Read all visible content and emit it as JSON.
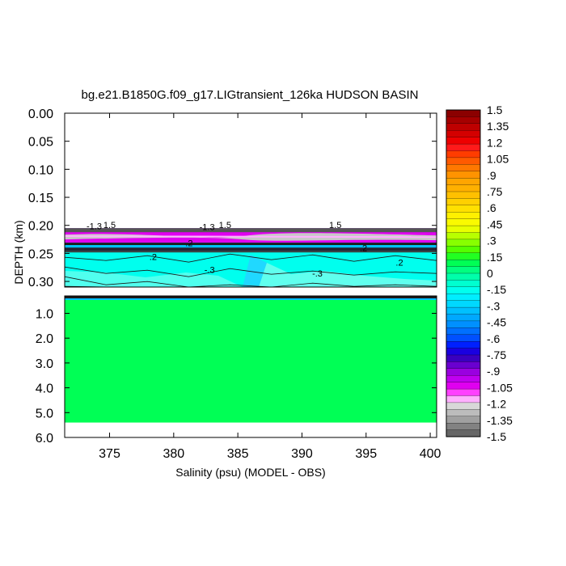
{
  "chart_data": {
    "type": "heatmap",
    "title": "bg.e21.B1850G.f09_g17.LIGtransient_126ka HUDSON BASIN",
    "xlabel": "Salinity (psu) (MODEL - OBS)",
    "ylabel": "DEPTH (km)",
    "xlim": [
      371.5,
      400.5
    ],
    "x_ticks": [
      "375",
      "380",
      "385",
      "390",
      "395",
      "400"
    ],
    "x_tick_values": [
      375,
      380,
      385,
      390,
      395,
      400
    ],
    "upper_panel": {
      "ylim": [
        0.0,
        0.31
      ],
      "y_ticks": [
        "0.00",
        "0.05",
        "0.10",
        "0.15",
        "0.20",
        "0.25",
        "0.30"
      ],
      "y_tick_values": [
        0.0,
        0.05,
        0.1,
        0.15,
        0.2,
        0.25,
        0.3
      ],
      "no_data_above_depth": 0.205
    },
    "lower_panel": {
      "ylim": [
        0.3,
        6.0
      ],
      "y_ticks": [
        "1.0",
        "2.0",
        "3.0",
        "4.0",
        "5.0",
        "6.0"
      ],
      "y_tick_values": [
        1.0,
        2.0,
        3.0,
        4.0,
        5.0,
        6.0
      ],
      "no_data_below_depth": 5.4
    },
    "contour_labels": [
      {
        "text": "-1.3",
        "x": 373.8,
        "depth": 0.207
      },
      {
        "text": "1.5",
        "x": 375.0,
        "depth": 0.205
      },
      {
        "text": "-1.3",
        "x": 382.6,
        "depth": 0.208
      },
      {
        "text": "1.5",
        "x": 384.0,
        "depth": 0.205
      },
      {
        "text": "1.5",
        "x": 392.6,
        "depth": 0.205
      },
      {
        "text": ".2",
        "x": 381.2,
        "depth": 0.237
      },
      {
        "text": ".2",
        "x": 378.4,
        "depth": 0.262
      },
      {
        "text": "-.3",
        "x": 382.8,
        "depth": 0.285
      },
      {
        "text": ".2",
        "x": 397.6,
        "depth": 0.272
      },
      {
        "text": "-.3",
        "x": 391.2,
        "depth": 0.291
      },
      {
        "text": ".2",
        "x": 394.8,
        "depth": 0.246
      }
    ],
    "colorbar": {
      "labels": [
        "1.5",
        "1.35",
        "1.2",
        "1.05",
        ".9",
        ".75",
        ".6",
        ".45",
        ".3",
        ".15",
        "0",
        "-.15",
        "-.3",
        "-.45",
        "-.6",
        "-.75",
        "-.9",
        "-1.05",
        "-1.2",
        "-1.35",
        "-1.5"
      ],
      "colors": [
        "#8b0000",
        "#a50000",
        "#be0000",
        "#d40000",
        "#ee0000",
        "#ff1a1a",
        "#ff3c00",
        "#ff5a00",
        "#ff7800",
        "#ff9300",
        "#ffa500",
        "#ffb000",
        "#ffc000",
        "#ffd000",
        "#ffe000",
        "#fff000",
        "#fafa00",
        "#e8ff00",
        "#b8ff00",
        "#88ff00",
        "#55ff00",
        "#22ff22",
        "#00ff55",
        "#00ff80",
        "#00ffaa",
        "#00ffd0",
        "#00ffee",
        "#00eeff",
        "#00d8ff",
        "#00c0ff",
        "#00a8ff",
        "#0090ff",
        "#0070ff",
        "#0050ff",
        "#0020ff",
        "#1a00e0",
        "#3a00c0",
        "#6a00d0",
        "#9a00e0",
        "#c000f0",
        "#e000f0",
        "#ff40ff",
        "#ffb0ff",
        "#d8d8d8",
        "#bcbcbc",
        "#a0a0a0",
        "#828282",
        "#666666"
      ]
    }
  }
}
